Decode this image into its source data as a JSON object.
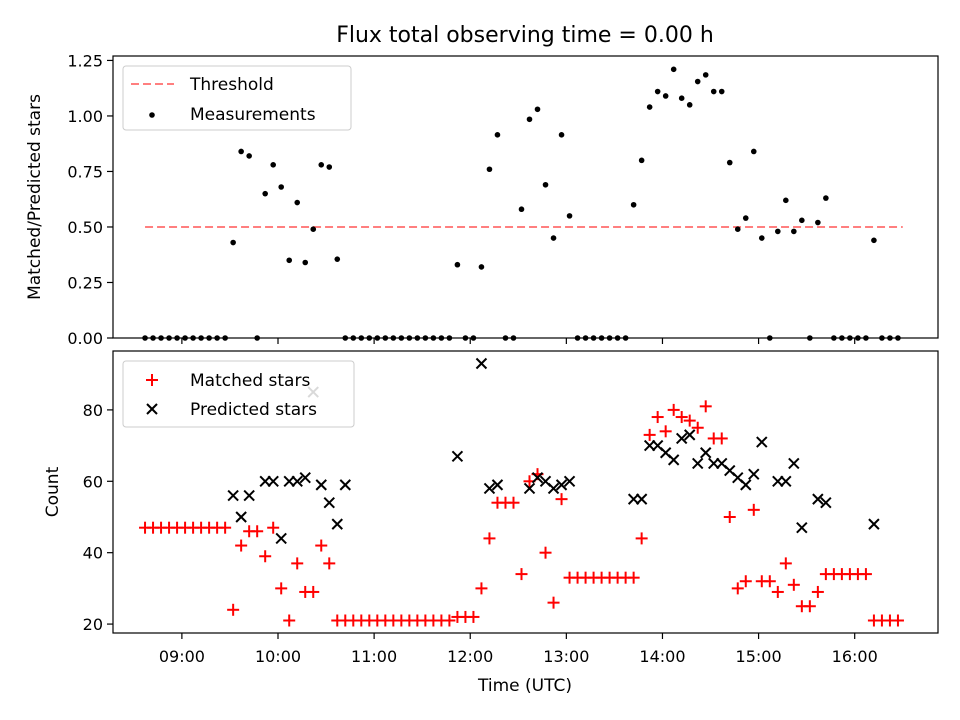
{
  "figure": {
    "title": "Flux total observing time = 0.00 h",
    "xlabel": "Time (UTC)",
    "xticks": [
      "09:00",
      "10:00",
      "11:00",
      "12:00",
      "13:00",
      "14:00",
      "15:00",
      "16:00"
    ]
  },
  "chart_data": [
    {
      "type": "scatter",
      "title": "Flux total observing time = 0.00 h",
      "ylabel": "Matched/Predicted stars",
      "xlim": [
        "08:17",
        "16:52"
      ],
      "ylim": [
        0,
        1.27
      ],
      "yticks": [
        "0.00",
        "0.25",
        "0.50",
        "0.75",
        "1.00",
        "1.25"
      ],
      "legend_position": "upper-left",
      "threshold": {
        "name": "Threshold",
        "value": 0.5,
        "x_start": "08:37",
        "x_end": "16:30",
        "color": "#ff7f7f",
        "style": "dashed"
      },
      "series": [
        {
          "name": "Measurements",
          "color": "#000000",
          "marker": "dot",
          "points": [
            [
              "08:37",
              0.0
            ],
            [
              "08:42",
              0.0
            ],
            [
              "08:47",
              0.0
            ],
            [
              "08:52",
              0.0
            ],
            [
              "08:57",
              0.0
            ],
            [
              "09:02",
              0.0
            ],
            [
              "09:07",
              0.0
            ],
            [
              "09:12",
              0.0
            ],
            [
              "09:17",
              0.0
            ],
            [
              "09:22",
              0.0
            ],
            [
              "09:27",
              0.0
            ],
            [
              "09:32",
              0.43
            ],
            [
              "09:37",
              0.84
            ],
            [
              "09:42",
              0.82
            ],
            [
              "09:47",
              0.0
            ],
            [
              "09:52",
              0.65
            ],
            [
              "09:57",
              0.78
            ],
            [
              "10:02",
              0.68
            ],
            [
              "10:07",
              0.35
            ],
            [
              "10:12",
              0.61
            ],
            [
              "10:17",
              0.34
            ],
            [
              "10:22",
              0.49
            ],
            [
              "10:27",
              0.78
            ],
            [
              "10:32",
              0.77
            ],
            [
              "10:37",
              0.355
            ],
            [
              "10:42",
              0.0
            ],
            [
              "10:47",
              0.0
            ],
            [
              "10:52",
              0.0
            ],
            [
              "10:57",
              0.0
            ],
            [
              "11:02",
              0.0
            ],
            [
              "11:07",
              0.0
            ],
            [
              "11:12",
              0.0
            ],
            [
              "11:17",
              0.0
            ],
            [
              "11:22",
              0.0
            ],
            [
              "11:27",
              0.0
            ],
            [
              "11:32",
              0.0
            ],
            [
              "11:37",
              0.0
            ],
            [
              "11:42",
              0.0
            ],
            [
              "11:47",
              0.0
            ],
            [
              "11:52",
              0.33
            ],
            [
              "11:57",
              0.0
            ],
            [
              "12:02",
              0.0
            ],
            [
              "12:07",
              0.32
            ],
            [
              "12:12",
              0.76
            ],
            [
              "12:17",
              0.915
            ],
            [
              "12:22",
              0.0
            ],
            [
              "12:27",
              0.0
            ],
            [
              "12:32",
              0.58
            ],
            [
              "12:37",
              0.985
            ],
            [
              "12:42",
              1.03
            ],
            [
              "12:47",
              0.69
            ],
            [
              "12:52",
              0.45
            ],
            [
              "12:57",
              0.915
            ],
            [
              "13:02",
              0.55
            ],
            [
              "13:07",
              0.0
            ],
            [
              "13:12",
              0.0
            ],
            [
              "13:17",
              0.0
            ],
            [
              "13:22",
              0.0
            ],
            [
              "13:27",
              0.0
            ],
            [
              "13:32",
              0.0
            ],
            [
              "13:37",
              0.0
            ],
            [
              "13:42",
              0.6
            ],
            [
              "13:47",
              0.8
            ],
            [
              "13:52",
              1.04
            ],
            [
              "13:57",
              1.11
            ],
            [
              "14:02",
              1.09
            ],
            [
              "14:07",
              1.21
            ],
            [
              "14:12",
              1.08
            ],
            [
              "14:17",
              1.05
            ],
            [
              "14:22",
              1.155
            ],
            [
              "14:27",
              1.185
            ],
            [
              "14:32",
              1.11
            ],
            [
              "14:37",
              1.11
            ],
            [
              "14:42",
              0.79
            ],
            [
              "14:47",
              0.49
            ],
            [
              "14:52",
              0.54
            ],
            [
              "14:57",
              0.84
            ],
            [
              "15:02",
              0.45
            ],
            [
              "15:07",
              0.0
            ],
            [
              "15:12",
              0.48
            ],
            [
              "15:17",
              0.62
            ],
            [
              "15:22",
              0.48
            ],
            [
              "15:27",
              0.53
            ],
            [
              "15:32",
              0.0
            ],
            [
              "15:37",
              0.52
            ],
            [
              "15:42",
              0.63
            ],
            [
              "15:47",
              0.0
            ],
            [
              "15:52",
              0.0
            ],
            [
              "15:57",
              0.0
            ],
            [
              "16:02",
              0.0
            ],
            [
              "16:07",
              0.0
            ],
            [
              "16:12",
              0.44
            ],
            [
              "16:17",
              0.0
            ],
            [
              "16:22",
              0.0
            ],
            [
              "16:27",
              0.0
            ]
          ]
        }
      ]
    },
    {
      "type": "scatter",
      "ylabel": "Count",
      "xlabel": "Time (UTC)",
      "xlim": [
        "08:17",
        "16:52"
      ],
      "ylim": [
        17.5,
        96.5
      ],
      "yticks": [
        "20",
        "40",
        "60",
        "80"
      ],
      "legend_position": "upper-left",
      "series": [
        {
          "name": "Matched stars",
          "color": "#ff0000",
          "marker": "plus",
          "points": [
            [
              "08:37",
              47
            ],
            [
              "08:42",
              47
            ],
            [
              "08:47",
              47
            ],
            [
              "08:52",
              47
            ],
            [
              "08:57",
              47
            ],
            [
              "09:02",
              47
            ],
            [
              "09:07",
              47
            ],
            [
              "09:12",
              47
            ],
            [
              "09:17",
              47
            ],
            [
              "09:22",
              47
            ],
            [
              "09:27",
              47
            ],
            [
              "09:32",
              24
            ],
            [
              "09:37",
              42
            ],
            [
              "09:42",
              46
            ],
            [
              "09:47",
              46
            ],
            [
              "09:52",
              39
            ],
            [
              "09:57",
              47
            ],
            [
              "10:02",
              30
            ],
            [
              "10:07",
              21
            ],
            [
              "10:12",
              37
            ],
            [
              "10:17",
              29
            ],
            [
              "10:22",
              29
            ],
            [
              "10:27",
              42
            ],
            [
              "10:32",
              37
            ],
            [
              "10:37",
              21
            ],
            [
              "10:42",
              21
            ],
            [
              "10:47",
              21
            ],
            [
              "10:52",
              21
            ],
            [
              "10:57",
              21
            ],
            [
              "11:02",
              21
            ],
            [
              "11:07",
              21
            ],
            [
              "11:12",
              21
            ],
            [
              "11:17",
              21
            ],
            [
              "11:22",
              21
            ],
            [
              "11:27",
              21
            ],
            [
              "11:32",
              21
            ],
            [
              "11:37",
              21
            ],
            [
              "11:42",
              21
            ],
            [
              "11:47",
              21
            ],
            [
              "11:52",
              22
            ],
            [
              "11:57",
              22
            ],
            [
              "12:02",
              22
            ],
            [
              "12:07",
              30
            ],
            [
              "12:12",
              44
            ],
            [
              "12:17",
              54
            ],
            [
              "12:22",
              54
            ],
            [
              "12:27",
              54
            ],
            [
              "12:32",
              34
            ],
            [
              "12:37",
              60
            ],
            [
              "12:42",
              62
            ],
            [
              "12:47",
              40
            ],
            [
              "12:52",
              26
            ],
            [
              "12:57",
              55
            ],
            [
              "13:02",
              33
            ],
            [
              "13:07",
              33
            ],
            [
              "13:12",
              33
            ],
            [
              "13:17",
              33
            ],
            [
              "13:22",
              33
            ],
            [
              "13:27",
              33
            ],
            [
              "13:32",
              33
            ],
            [
              "13:37",
              33
            ],
            [
              "13:42",
              33
            ],
            [
              "13:47",
              44
            ],
            [
              "13:52",
              73
            ],
            [
              "13:57",
              78
            ],
            [
              "14:02",
              74
            ],
            [
              "14:07",
              80
            ],
            [
              "14:12",
              78
            ],
            [
              "14:17",
              77
            ],
            [
              "14:22",
              75
            ],
            [
              "14:27",
              81
            ],
            [
              "14:32",
              72
            ],
            [
              "14:37",
              72
            ],
            [
              "14:42",
              50
            ],
            [
              "14:47",
              30
            ],
            [
              "14:52",
              32
            ],
            [
              "14:57",
              52
            ],
            [
              "15:02",
              32
            ],
            [
              "15:07",
              32
            ],
            [
              "15:12",
              29
            ],
            [
              "15:17",
              37
            ],
            [
              "15:22",
              31
            ],
            [
              "15:27",
              25
            ],
            [
              "15:32",
              25
            ],
            [
              "15:37",
              29
            ],
            [
              "15:42",
              34
            ],
            [
              "15:47",
              34
            ],
            [
              "15:52",
              34
            ],
            [
              "15:57",
              34
            ],
            [
              "16:02",
              34
            ],
            [
              "16:07",
              34
            ],
            [
              "16:12",
              21
            ],
            [
              "16:17",
              21
            ],
            [
              "16:22",
              21
            ],
            [
              "16:27",
              21
            ]
          ]
        },
        {
          "name": "Predicted stars",
          "color": "#000000",
          "marker": "x",
          "points": [
            [
              "09:32",
              56
            ],
            [
              "09:37",
              50
            ],
            [
              "09:42",
              56
            ],
            [
              "09:52",
              60
            ],
            [
              "09:57",
              60
            ],
            [
              "10:02",
              44
            ],
            [
              "10:07",
              60
            ],
            [
              "10:12",
              60
            ],
            [
              "10:17",
              61
            ],
            [
              "10:22",
              85
            ],
            [
              "10:27",
              59
            ],
            [
              "10:32",
              54
            ],
            [
              "10:37",
              48
            ],
            [
              "10:42",
              59
            ],
            [
              "11:52",
              67
            ],
            [
              "12:07",
              93
            ],
            [
              "12:12",
              58
            ],
            [
              "12:17",
              59
            ],
            [
              "12:37",
              58
            ],
            [
              "12:42",
              61
            ],
            [
              "12:47",
              60
            ],
            [
              "12:52",
              58
            ],
            [
              "12:57",
              59
            ],
            [
              "13:02",
              60
            ],
            [
              "13:42",
              55
            ],
            [
              "13:47",
              55
            ],
            [
              "13:52",
              70
            ],
            [
              "13:57",
              70
            ],
            [
              "14:02",
              68
            ],
            [
              "14:07",
              66
            ],
            [
              "14:12",
              72
            ],
            [
              "14:17",
              73
            ],
            [
              "14:22",
              65
            ],
            [
              "14:27",
              68
            ],
            [
              "14:32",
              65
            ],
            [
              "14:37",
              65
            ],
            [
              "14:42",
              63
            ],
            [
              "14:47",
              61
            ],
            [
              "14:52",
              59
            ],
            [
              "14:57",
              62
            ],
            [
              "15:02",
              71
            ],
            [
              "15:12",
              60
            ],
            [
              "15:17",
              60
            ],
            [
              "15:22",
              65
            ],
            [
              "15:27",
              47
            ],
            [
              "15:37",
              55
            ],
            [
              "15:42",
              54
            ],
            [
              "16:12",
              48
            ]
          ]
        }
      ]
    }
  ]
}
